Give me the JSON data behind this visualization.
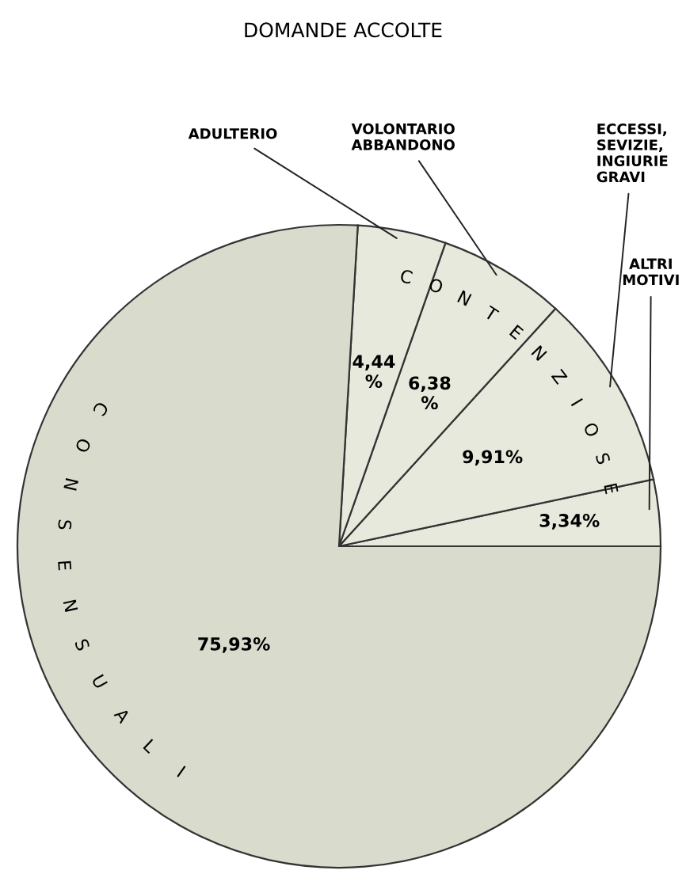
{
  "chart_data": {
    "type": "pie",
    "title": "DOMANDE ACCOLTE",
    "categories": [
      "ALTRI\nMOTIVI",
      "ECCESSI,\nSEVIZIE,\nINGIURIE\nGRAVI",
      "VOLONTARIO\nABBANDONO",
      "ADULTERIO",
      null
    ],
    "values": [
      3.34,
      9.91,
      6.38,
      4.44,
      75.93
    ],
    "value_labels": [
      "3,34%",
      "9,91%",
      "6,38\n%",
      "4,44\n%",
      "75,93%"
    ],
    "colors": [
      "#e6e9dc",
      "#e6e9dc",
      "#e6e9dc",
      "#e6e9dc",
      "#d9dccd"
    ],
    "annotations": [
      "CONTENZIOSE",
      "CONSENSUALI"
    ]
  }
}
